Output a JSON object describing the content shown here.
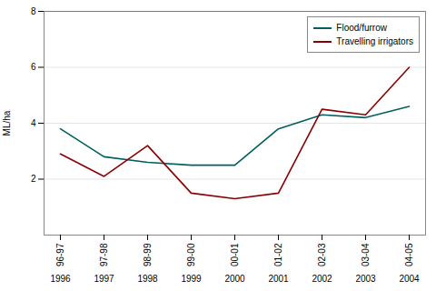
{
  "chart_data": {
    "type": "line",
    "title": "",
    "ylabel": "ML/ha",
    "categories": [
      "96-97",
      "97-98",
      "98-99",
      "99-00",
      "00-01",
      "01-02",
      "02-03",
      "03-04",
      "04-05"
    ],
    "annotations": [
      "1996",
      "1997",
      "1998",
      "1999",
      "2000",
      "2001",
      "2002",
      "2003",
      "2004"
    ],
    "series": [
      {
        "name": "Flood/furrow",
        "color": "#006060",
        "values": [
          3.8,
          2.8,
          2.6,
          2.5,
          2.5,
          3.8,
          4.3,
          4.2,
          4.6
        ]
      },
      {
        "name": "Travelling irrigators",
        "color": "#8B0000",
        "values": [
          2.9,
          2.1,
          3.2,
          1.5,
          1.3,
          1.5,
          4.5,
          4.3,
          6.0
        ]
      }
    ],
    "ylim": [
      0,
      8
    ],
    "yticks": [
      2,
      4,
      6,
      8
    ],
    "grid": true,
    "legend": "upper right"
  }
}
